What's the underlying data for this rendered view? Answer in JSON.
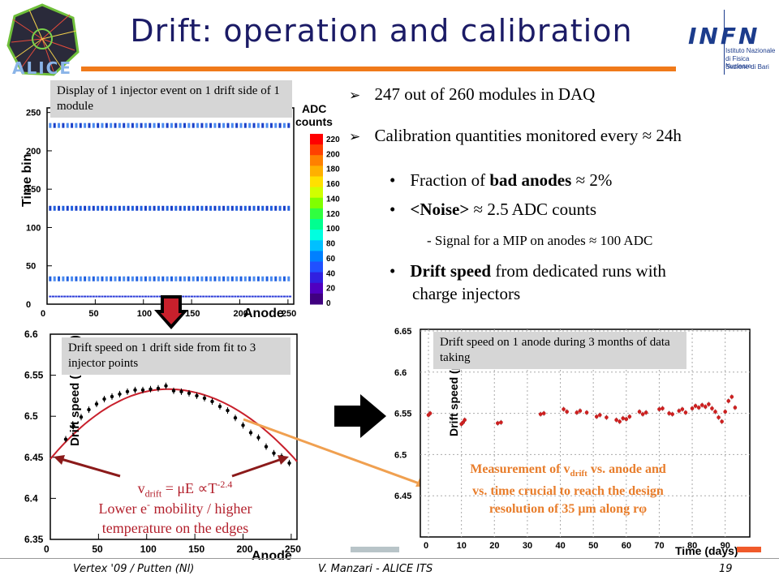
{
  "header": {
    "title": "Drift: operation and calibration",
    "alice_logo_text": "ALICE",
    "infn_logo": {
      "acronym": "INFN",
      "line1": "Istituto Nazionale",
      "line2": "di Fisica Nucleare",
      "line3": "Sezione di Bari"
    }
  },
  "bullets": {
    "main": [
      "247 out of 260 modules in DAQ",
      "Calibration quantities monitored every ≈ 24h"
    ],
    "fraction_pre": "Fraction of ",
    "fraction_bold": "bad anodes",
    "fraction_post": " ≈ 2%",
    "noise_bold": "<Noise>",
    "noise_post": " ≈ 2.5 ADC counts",
    "signal_sub": "- Signal for a MIP on anodes ≈ 100 ADC",
    "drift_bold": "Drift speed",
    "drift_post_1": " from dedicated runs with",
    "drift_post_2": "charge injectors"
  },
  "captions": {
    "display": "Display of 1 injector event on 1 drift side of 1 module",
    "fit": "Drift speed on 1 drift side from fit to 3 injector points",
    "time": "Drift speed on 1 anode during 3 months of data taking"
  },
  "annotations": {
    "vdrift_main": "v",
    "vdrift_sub": "drift",
    "vdrift_eq": " = μE ∝T",
    "vdrift_exp": "-2.4",
    "mobility_1": "Lower e",
    "mobility_sup": "-",
    "mobility_2": " mobility / higher",
    "mobility_3": "temperature on the edges",
    "measurement_1": "Measurement of v",
    "measurement_sub": "drift",
    "measurement_2": " vs. anode and",
    "measurement_3": "vs. time crucial to reach the design",
    "measurement_4": "resolution of 35 μm along rφ"
  },
  "footer": {
    "left": "Vertex '09 / Putten (Nl)",
    "center": "V. Manzari - ALICE ITS",
    "page": "19"
  },
  "colors": {
    "title": "#1b1b66",
    "rule": "#f07a1a",
    "red_text": "#b3202c",
    "orange_text": "#e87d2b",
    "fit_line": "#c8202c",
    "marker": "#cc2020"
  },
  "chart_data": [
    {
      "type": "heatmap",
      "xlabel": "Anode",
      "ylabel": "Time bin",
      "zlabel": "ADC counts",
      "xlim": [
        0,
        256
      ],
      "ylim": [
        0,
        256
      ],
      "xticks": [
        "0",
        "50",
        "100",
        "150",
        "200",
        "250"
      ],
      "yticks": [
        "0",
        "50",
        "100",
        "150",
        "200",
        "250"
      ],
      "zticks": [
        "0",
        "20",
        "40",
        "60",
        "80",
        "100",
        "120",
        "140",
        "160",
        "180",
        "200",
        "220"
      ],
      "injector_rows_time_bin": [
        232,
        124,
        32
      ],
      "baseline_time_bin": 10
    },
    {
      "type": "scatter",
      "xlabel": "Anode",
      "ylabel": "Drift speed (μm/ns)",
      "xlim": [
        0,
        256
      ],
      "ylim": [
        6.35,
        6.6
      ],
      "xticks": [
        "0",
        "50",
        "100",
        "150",
        "200",
        "250"
      ],
      "yticks": [
        "6.35",
        "6.4",
        "6.45",
        "6.5",
        "6.55",
        "6.6"
      ],
      "x": [
        16,
        24,
        32,
        40,
        48,
        56,
        64,
        72,
        80,
        88,
        96,
        104,
        112,
        120,
        128,
        136,
        144,
        152,
        160,
        168,
        176,
        184,
        192,
        200,
        208,
        216,
        224,
        232,
        240,
        248
      ],
      "y": [
        6.472,
        6.488,
        6.499,
        6.508,
        6.515,
        6.521,
        6.524,
        6.527,
        6.53,
        6.532,
        6.532,
        6.533,
        6.534,
        6.537,
        6.531,
        6.53,
        6.528,
        6.525,
        6.522,
        6.518,
        6.512,
        6.507,
        6.498,
        6.489,
        6.48,
        6.474,
        6.463,
        6.455,
        6.451,
        6.443
      ],
      "fit": {
        "x_start": 0,
        "x_end": 256,
        "y_start": 6.448,
        "y_peak": 6.533,
        "x_peak": 122,
        "y_end": 6.445
      }
    },
    {
      "type": "scatter",
      "xlabel": "Time (days)",
      "ylabel": "Drift speed (μm/ns)",
      "xlim": [
        0,
        95
      ],
      "ylim": [
        6.4,
        6.65
      ],
      "xticks": [
        "0",
        "10",
        "20",
        "30",
        "40",
        "50",
        "60",
        "70",
        "80",
        "90"
      ],
      "yticks": [
        "6.45",
        "6.5",
        "6.55",
        "6.6",
        "6.65"
      ],
      "x": [
        0,
        0.5,
        10,
        10.5,
        11,
        21,
        22,
        34,
        35,
        41,
        42,
        45,
        46,
        48,
        51,
        52,
        54,
        57,
        58,
        59,
        60,
        61,
        64,
        65,
        66,
        70,
        71,
        73,
        74,
        76,
        77,
        78,
        80,
        81,
        82,
        83,
        84,
        85,
        86,
        87,
        88,
        89,
        90,
        91,
        92,
        93
      ],
      "y": [
        6.548,
        6.55,
        6.537,
        6.539,
        6.542,
        6.538,
        6.539,
        6.549,
        6.55,
        6.555,
        6.552,
        6.551,
        6.553,
        6.551,
        6.546,
        6.548,
        6.545,
        6.542,
        6.54,
        6.544,
        6.543,
        6.546,
        6.552,
        6.549,
        6.551,
        6.555,
        6.556,
        6.55,
        6.549,
        6.553,
        6.555,
        6.551,
        6.556,
        6.559,
        6.557,
        6.56,
        6.558,
        6.561,
        6.556,
        6.552,
        6.545,
        6.54,
        6.552,
        6.565,
        6.57,
        6.557
      ]
    }
  ]
}
